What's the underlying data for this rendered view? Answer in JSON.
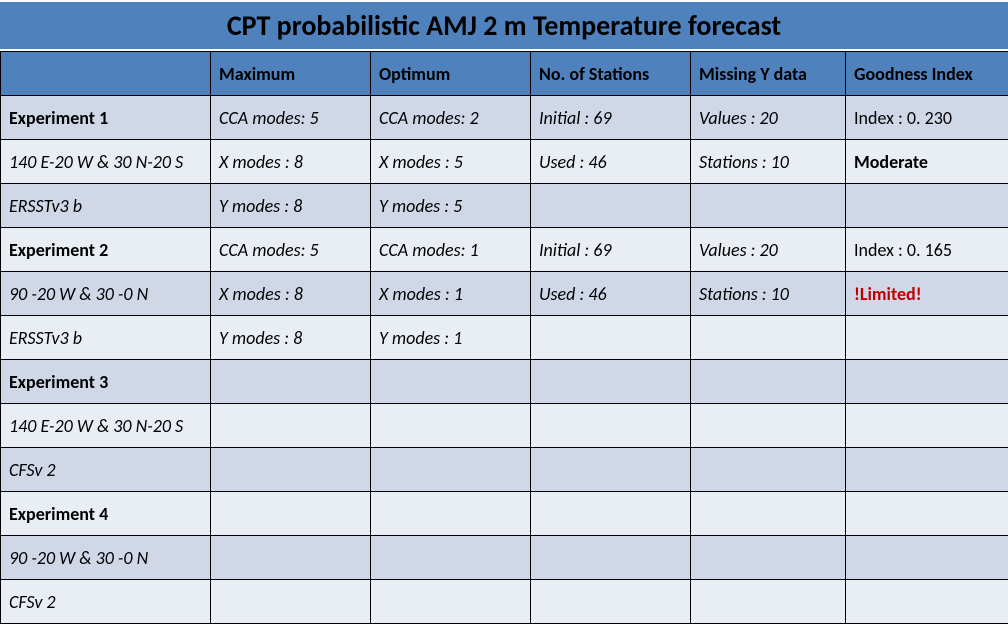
{
  "title": "CPT probabilistic AMJ 2 m Temperature forecast",
  "headers": [
    "",
    "Maximum",
    "Optimum",
    "No. of Stations",
    "Missing Y data",
    "Goodness Index"
  ],
  "rows": [
    {
      "label": "Experiment 1",
      "labelStyle": "bold",
      "cells": [
        "CCA modes: 5",
        "CCA modes: 2",
        "Initial : 69",
        "Values : 20",
        "Index : 0. 230"
      ],
      "cellStyles": [
        "italic",
        "italic",
        "italic",
        "italic",
        ""
      ]
    },
    {
      "label": "140 E-20 W & 30 N-20 S",
      "labelStyle": "italic",
      "cells": [
        "X modes : 8",
        "X modes : 5",
        "Used : 46",
        "Stations : 10",
        "Moderate"
      ],
      "cellStyles": [
        "italic",
        "italic",
        "italic",
        "italic",
        "bold"
      ]
    },
    {
      "label": "ERSSTv3 b",
      "labelStyle": "italic",
      "cells": [
        "Y modes : 8",
        "Y modes : 5",
        "",
        "",
        ""
      ],
      "cellStyles": [
        "italic",
        "italic",
        "",
        "",
        ""
      ]
    },
    {
      "label": "Experiment 2",
      "labelStyle": "bold",
      "cells": [
        "CCA modes: 5",
        "CCA modes: 1",
        "Initial : 69",
        "Values : 20",
        "Index : 0. 165"
      ],
      "cellStyles": [
        "italic",
        "italic",
        "italic",
        "italic",
        ""
      ]
    },
    {
      "label": "90 -20 W & 30 -0 N",
      "labelStyle": "italic",
      "cells": [
        "X modes : 8",
        "X modes : 1",
        "Used : 46",
        "Stations : 10",
        "!Limited!"
      ],
      "cellStyles": [
        "italic",
        "italic",
        "italic",
        "italic",
        "limited"
      ]
    },
    {
      "label": "ERSSTv3 b",
      "labelStyle": "italic",
      "cells": [
        "Y modes : 8",
        "Y modes : 1",
        "",
        "",
        ""
      ],
      "cellStyles": [
        "italic",
        "italic",
        "",
        "",
        ""
      ]
    },
    {
      "label": "Experiment 3",
      "labelStyle": "bold",
      "cells": [
        "",
        "",
        "",
        "",
        ""
      ],
      "cellStyles": [
        "",
        "",
        "",
        "",
        ""
      ]
    },
    {
      "label": "140 E-20 W & 30 N-20 S",
      "labelStyle": "italic",
      "cells": [
        "",
        "",
        "",
        "",
        ""
      ],
      "cellStyles": [
        "",
        "",
        "",
        "",
        ""
      ]
    },
    {
      "label": "CFSv 2",
      "labelStyle": "italic",
      "cells": [
        "",
        "",
        "",
        "",
        ""
      ],
      "cellStyles": [
        "",
        "",
        "",
        "",
        ""
      ]
    },
    {
      "label": "Experiment 4",
      "labelStyle": "bold",
      "cells": [
        "",
        "",
        "",
        "",
        ""
      ],
      "cellStyles": [
        "",
        "",
        "",
        "",
        ""
      ]
    },
    {
      "label": "90 -20 W & 30 -0 N",
      "labelStyle": "italic",
      "cells": [
        "",
        "",
        "",
        "",
        ""
      ],
      "cellStyles": [
        "",
        "",
        "",
        "",
        ""
      ]
    },
    {
      "label": "CFSv 2",
      "labelStyle": "italic",
      "cells": [
        "",
        "",
        "",
        "",
        ""
      ],
      "cellStyles": [
        "",
        "",
        "",
        "",
        ""
      ]
    }
  ],
  "colors": {
    "header_bg": "#4f81bd",
    "row_odd_bg": "#d0d8e8",
    "row_even_bg": "#e9edf4",
    "border": "#000000",
    "limited_text": "#c00000"
  }
}
